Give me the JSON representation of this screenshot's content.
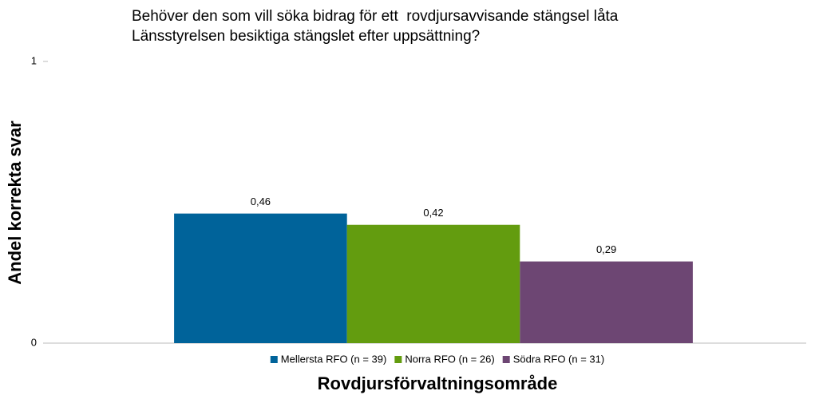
{
  "chart_data": {
    "type": "bar",
    "title": [
      "Behöver den som vill söka bidrag för ett  rovdjursavvisande stängsel låta",
      "Länsstyrelsen besiktiga stängslet efter uppsättning?"
    ],
    "x_label": "Rovdjursförvaltningsområde",
    "y_label": "Andel korrekta svar",
    "categories": [
      null
    ],
    "series": [
      {
        "name": "Mellersta RFO (n = 39)",
        "color": "#00639a",
        "values": [
          0.46
        ],
        "value_labels": [
          "0,46"
        ]
      },
      {
        "name": "Norra RFO (n = 26)",
        "color": "#639c0f",
        "values": [
          0.42
        ],
        "value_labels": [
          "0,42"
        ]
      },
      {
        "name": "Södra RFO (n = 31)",
        "color": "#6d4673",
        "values": [
          0.29
        ],
        "value_labels": [
          "0,29"
        ]
      }
    ],
    "ylim": [
      0,
      1
    ],
    "yticks": [
      0,
      1
    ],
    "grid": false,
    "legend": "bottom"
  }
}
